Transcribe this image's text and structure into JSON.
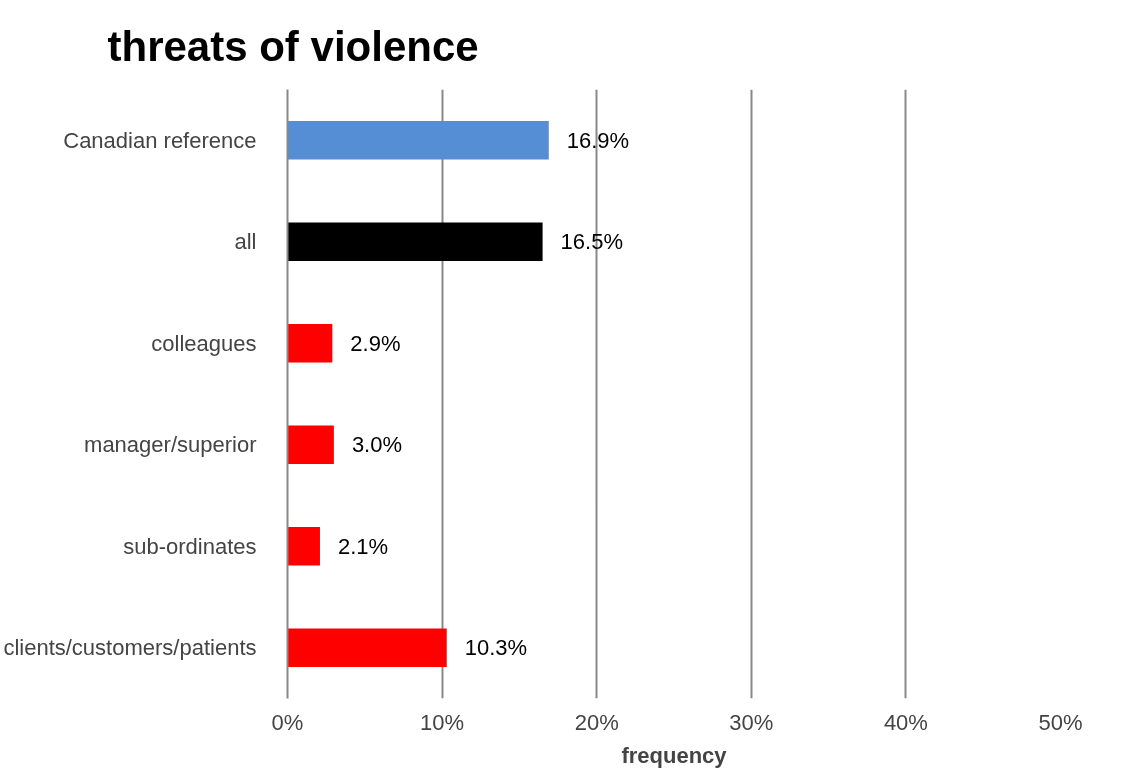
{
  "chart_data": {
    "type": "bar",
    "orientation": "horizontal",
    "title": "threats of violence",
    "xlabel": "frequency",
    "categories": [
      "Canadian reference",
      "all",
      "colleagues",
      "manager/superior",
      "sub-ordinates",
      "clients/customers/patients"
    ],
    "values": [
      16.9,
      16.5,
      2.9,
      3.0,
      2.1,
      10.3
    ],
    "colors": [
      "#558ed5",
      "#000000",
      "#ff0000",
      "#ff0000",
      "#ff0000",
      "#ff0000"
    ],
    "value_labels": [
      "16.9%",
      "16.5%",
      "2.9%",
      "3.0%",
      "2.1%",
      "10.3%"
    ],
    "xlim": [
      0,
      50
    ],
    "xticks": [
      {
        "value": 0,
        "label": "0%"
      },
      {
        "value": 10,
        "label": "10%"
      },
      {
        "value": 20,
        "label": "20%"
      },
      {
        "value": 30,
        "label": "30%"
      },
      {
        "value": 40,
        "label": "40%"
      },
      {
        "value": 50,
        "label": "50%"
      }
    ],
    "grid": "x"
  }
}
